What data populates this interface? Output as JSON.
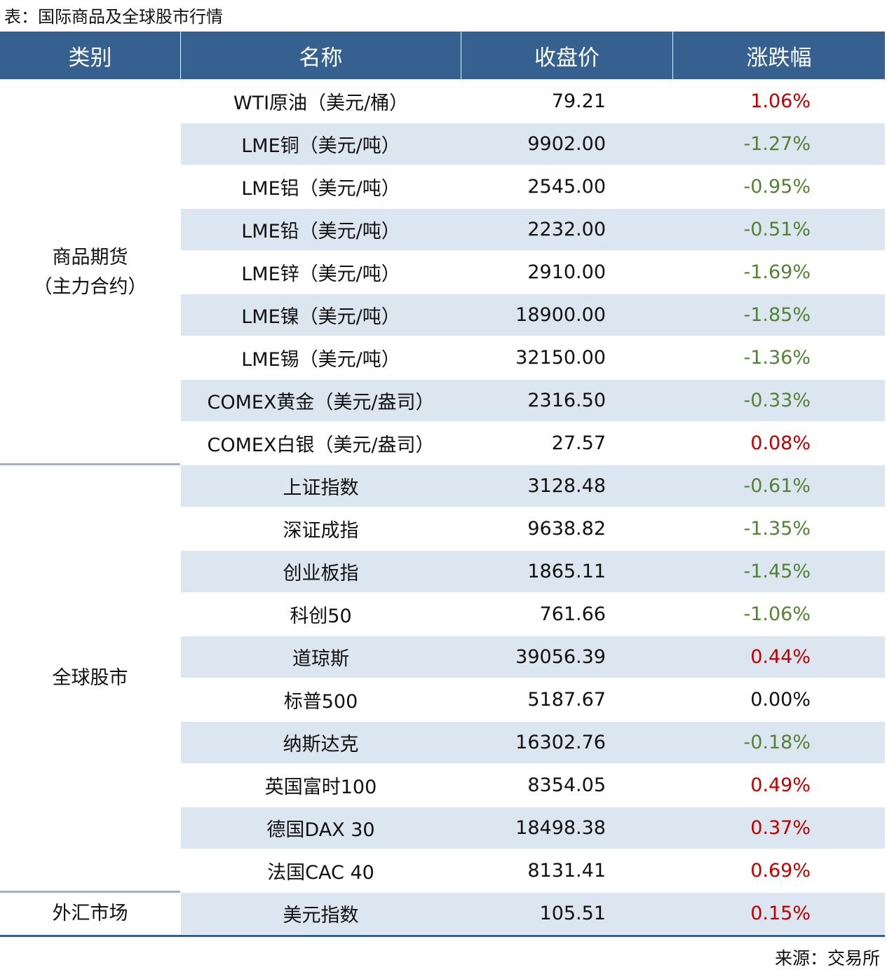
{
  "title": "表：国际商品及全球股市行情",
  "table": {
    "header": [
      "类别",
      "名称",
      "收盘价",
      "涨跌幅"
    ],
    "groups": [
      {
        "category": [
          "商品期货",
          "（主力合约）"
        ],
        "rows": [
          [
            "WTI原油（美元/桶）",
            "79.21",
            "1.06%"
          ],
          [
            "LME铜（美元/吨）",
            "9902.00",
            "-1.27%"
          ],
          [
            "LME铝（美元/吨）",
            "2545.00",
            "-0.95%"
          ],
          [
            "LME铅（美元/吨）",
            "2232.00",
            "-0.51%"
          ],
          [
            "LME锌（美元/吨）",
            "2910.00",
            "-1.69%"
          ],
          [
            "LME镍（美元/吨）",
            "18900.00",
            "-1.85%"
          ],
          [
            "LME锡（美元/吨）",
            "32150.00",
            "-1.36%"
          ],
          [
            "COMEX黄金（美元/盎司）",
            "2316.50",
            "-0.33%"
          ],
          [
            "COMEX白银（美元/盎司）",
            "27.57",
            "0.08%"
          ]
        ]
      },
      {
        "category": [
          "全球股市"
        ],
        "rows": [
          [
            "上证指数",
            "3128.48",
            "-0.61%"
          ],
          [
            "深证成指",
            "9638.82",
            "-1.35%"
          ],
          [
            "创业板指",
            "1865.11",
            "-1.45%"
          ],
          [
            "科创50",
            "761.66",
            "-1.06%"
          ],
          [
            "道琼斯",
            "39056.39",
            "0.44%"
          ],
          [
            "标普500",
            "5187.67",
            "0.00%"
          ],
          [
            "纳斯达克",
            "16302.76",
            "-0.18%"
          ],
          [
            "英国富时100",
            "8354.05",
            "0.49%"
          ],
          [
            "德国DAX 30",
            "18498.38",
            "0.37%"
          ],
          [
            "法国CAC 40",
            "8131.41",
            "0.69%"
          ]
        ]
      },
      {
        "category": [
          "外汇市场"
        ],
        "rows": [
          [
            "美元指数",
            "105.51",
            "0.15%"
          ]
        ]
      }
    ]
  },
  "source": "来源：交易所"
}
